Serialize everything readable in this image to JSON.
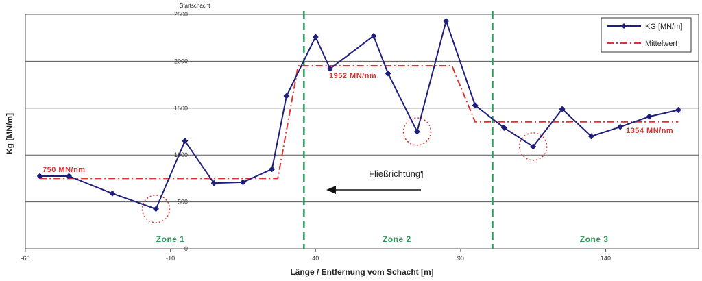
{
  "chart_data": {
    "type": "line",
    "top_label": "Startschacht",
    "xlabel": "Länge / Entfernung vom Schacht [m]",
    "ylabel": "Kg [MN/m]",
    "xlim": [
      -60,
      172
    ],
    "ylim": [
      0,
      2500
    ],
    "xticks": [
      -60,
      -10,
      40,
      90,
      140
    ],
    "yticks": [
      0,
      500,
      1000,
      1500,
      2000,
      2500
    ],
    "grid": "horizontal",
    "legend_position": "top-right",
    "series": [
      {
        "name": "KG [MN/m]",
        "color": "#1f1f7a",
        "marker": "diamond",
        "x": [
          -55,
          -45,
          -30,
          -15,
          -5,
          5,
          15,
          25,
          30,
          40,
          45,
          60,
          65,
          75,
          85,
          95,
          105,
          115,
          125,
          135,
          145,
          155,
          165
        ],
        "y": [
          775,
          775,
          590,
          425,
          1150,
          700,
          710,
          850,
          1630,
          2260,
          1920,
          2270,
          1870,
          1250,
          2430,
          1530,
          1290,
          1090,
          1490,
          1200,
          1300,
          1410,
          1480
        ]
      },
      {
        "name": "Mittelwert",
        "color": "#e03030",
        "style": "dash-dot",
        "x": [
          -55,
          27,
          34,
          87,
          95,
          165
        ],
        "y": [
          750,
          750,
          1952,
          1952,
          1354,
          1354
        ]
      }
    ],
    "annotations": [
      {
        "text": "750 MN/nm",
        "color": "#e03030"
      },
      {
        "text": "1952 MN/nm",
        "color": "#e03030"
      },
      {
        "text": "1354 MN/nm",
        "color": "#e03030"
      },
      {
        "text": "Fließrichtung¶"
      }
    ],
    "zone_lines_x": [
      36,
      101
    ],
    "zones": [
      {
        "label": "Zone 1",
        "x": -10
      },
      {
        "label": "Zone 2",
        "x": 68
      },
      {
        "label": "Zone 3",
        "x": 136
      }
    ],
    "highlighted_points_x": [
      -15,
      75,
      115
    ],
    "colors": {
      "zone_line": "#2a9a5a",
      "highlight": "#e03030"
    }
  }
}
